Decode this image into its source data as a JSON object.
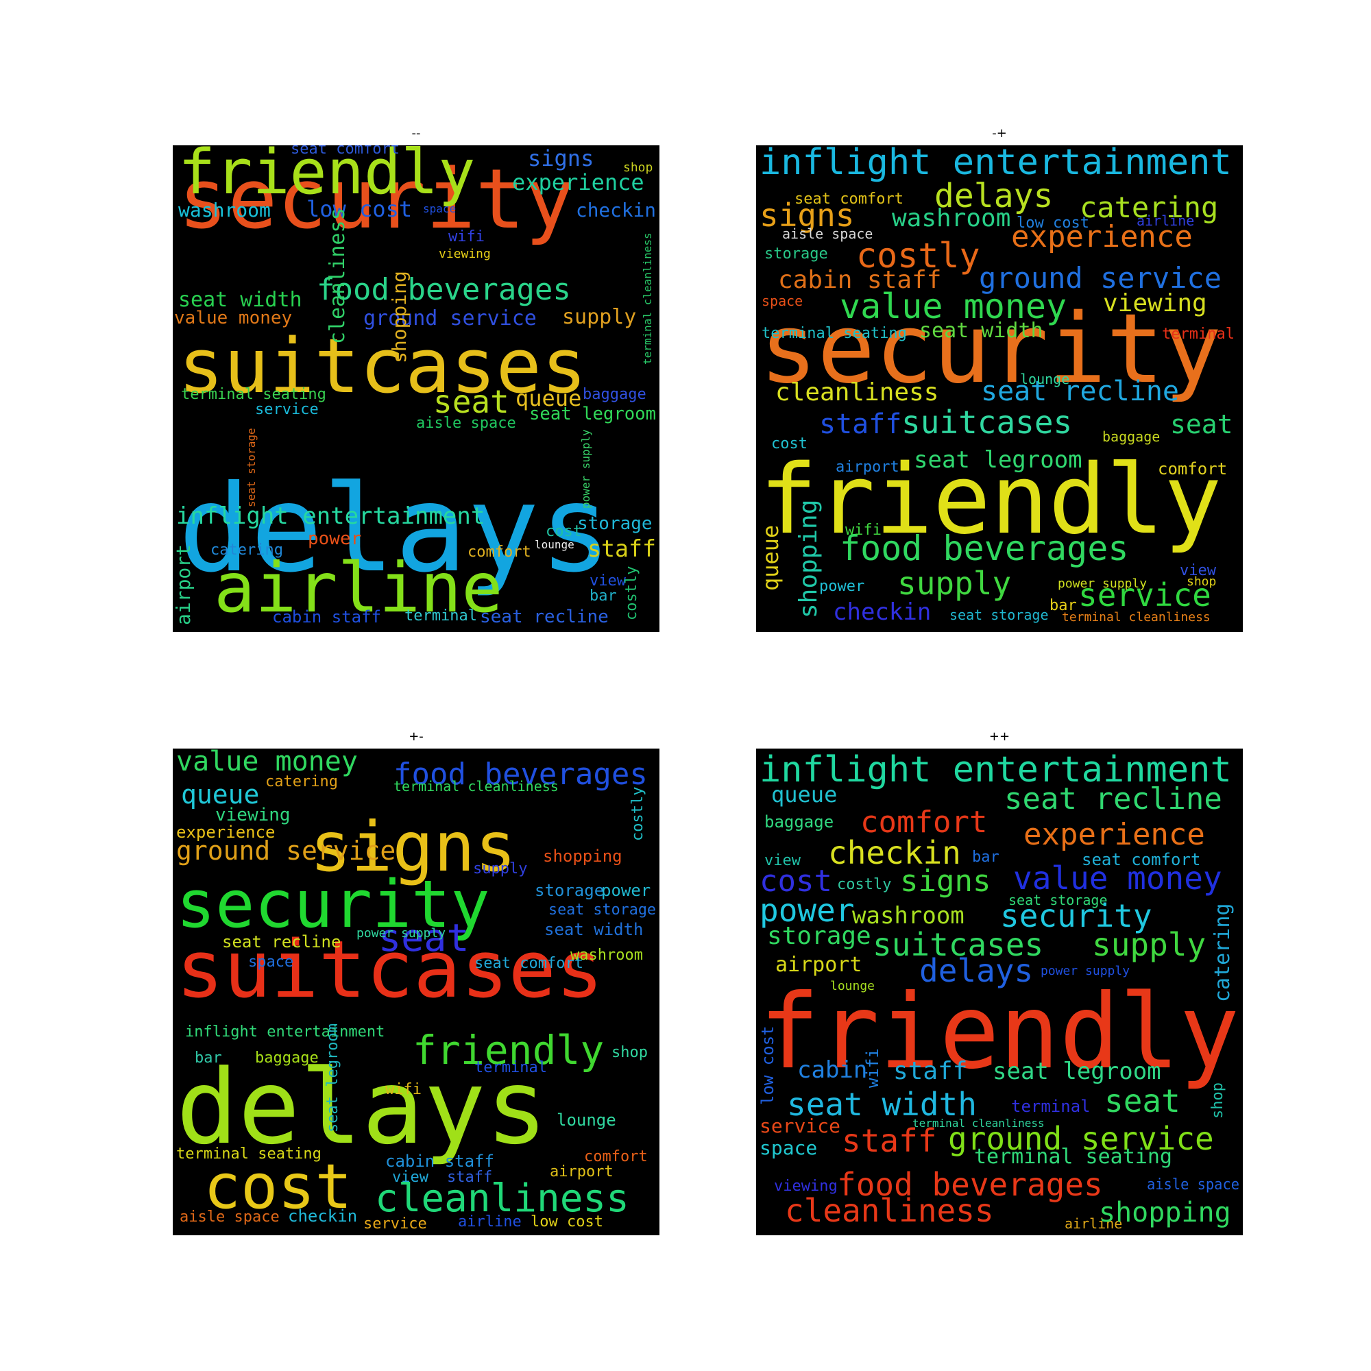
{
  "panels": [
    {
      "id": "mm",
      "title": "--",
      "words": [
        {
          "text": "delays",
          "color": "#12a5e0"
        },
        {
          "text": "security",
          "color": "#e8501c"
        },
        {
          "text": "suitcases",
          "color": "#e6bf1a"
        },
        {
          "text": "airline",
          "color": "#84e019"
        },
        {
          "text": "friendly",
          "color": "#a8e01a"
        },
        {
          "text": "food beverages",
          "color": "#2ad48a"
        },
        {
          "text": "inflight entertainment",
          "color": "#26d8a0"
        },
        {
          "text": "experience",
          "color": "#1fd0a0"
        },
        {
          "text": "low cost",
          "color": "#2060e0"
        },
        {
          "text": "washroom",
          "color": "#18c0d8"
        },
        {
          "text": "ground service",
          "color": "#3050e0"
        },
        {
          "text": "seat width",
          "color": "#28d050"
        },
        {
          "text": "value money",
          "color": "#e07818"
        },
        {
          "text": "seat",
          "color": "#b8e020"
        },
        {
          "text": "queue",
          "color": "#e8c020"
        },
        {
          "text": "supply",
          "color": "#e0a020"
        },
        {
          "text": "signs",
          "color": "#3070e8"
        },
        {
          "text": "checkin",
          "color": "#2070e0"
        },
        {
          "text": "cleanliness",
          "color": "#30d068"
        },
        {
          "text": "shopping",
          "color": "#e0b020"
        },
        {
          "text": "staff",
          "color": "#d8d018"
        },
        {
          "text": "storage",
          "color": "#20b8d8"
        },
        {
          "text": "terminal seating",
          "color": "#38d050"
        },
        {
          "text": "seat legroom",
          "color": "#30d858"
        },
        {
          "text": "seat comfort",
          "color": "#2c58d8"
        },
        {
          "text": "service",
          "color": "#1ab8d8"
        },
        {
          "text": "aisle space",
          "color": "#20c860"
        },
        {
          "text": "baggage",
          "color": "#3050e0"
        },
        {
          "text": "power",
          "color": "#e85018"
        },
        {
          "text": "catering",
          "color": "#2088d8"
        },
        {
          "text": "comfort",
          "color": "#e0b020"
        },
        {
          "text": "cost",
          "color": "#20c0a0"
        },
        {
          "text": "airport",
          "color": "#28d088"
        },
        {
          "text": "view",
          "color": "#2050e0"
        },
        {
          "text": "bar",
          "color": "#20b0c8"
        },
        {
          "text": "costly",
          "color": "#20c070"
        },
        {
          "text": "cabin staff",
          "color": "#2050e0"
        },
        {
          "text": "terminal",
          "color": "#30c8d0"
        },
        {
          "text": "seat recline",
          "color": "#2a60e0"
        },
        {
          "text": "wifi",
          "color": "#3040e0"
        },
        {
          "text": "viewing",
          "color": "#e8d018"
        },
        {
          "text": "space",
          "color": "#2050e0"
        },
        {
          "text": "shop",
          "color": "#c8d020"
        },
        {
          "text": "lounge",
          "color": "#f0f0f0"
        },
        {
          "text": "power supply",
          "color": "#38d068"
        },
        {
          "text": "seat storage",
          "color": "#e06818"
        },
        {
          "text": "terminal cleanliness",
          "color": "#28c868"
        }
      ]
    },
    {
      "id": "mp",
      "title": "-+",
      "words": [
        {
          "text": "security",
          "color": "#e8701c"
        },
        {
          "text": "friendly",
          "color": "#e0e018"
        },
        {
          "text": "inflight entertainment",
          "color": "#1ab8e0"
        },
        {
          "text": "delays",
          "color": "#b8e020"
        },
        {
          "text": "catering",
          "color": "#a8e020"
        },
        {
          "text": "signs",
          "color": "#e8a018"
        },
        {
          "text": "washroom",
          "color": "#28d088"
        },
        {
          "text": "experience",
          "color": "#e87018"
        },
        {
          "text": "costly",
          "color": "#e86818"
        },
        {
          "text": "cabin staff",
          "color": "#e07018"
        },
        {
          "text": "ground service",
          "color": "#2070e0"
        },
        {
          "text": "value money",
          "color": "#30d850"
        },
        {
          "text": "viewing",
          "color": "#d8e020"
        },
        {
          "text": "seat width",
          "color": "#60d840"
        },
        {
          "text": "cleanliness",
          "color": "#d8e020"
        },
        {
          "text": "seat recline",
          "color": "#20a8e0"
        },
        {
          "text": "suitcases",
          "color": "#30d8a0"
        },
        {
          "text": "staff",
          "color": "#2050e0"
        },
        {
          "text": "seat",
          "color": "#28d070"
        },
        {
          "text": "seat legroom",
          "color": "#30d870"
        },
        {
          "text": "food beverages",
          "color": "#30d860"
        },
        {
          "text": "supply",
          "color": "#40d840"
        },
        {
          "text": "service",
          "color": "#30d840"
        },
        {
          "text": "shopping",
          "color": "#20c8a8"
        },
        {
          "text": "queue",
          "color": "#e0d018"
        },
        {
          "text": "checkin",
          "color": "#3030e0"
        },
        {
          "text": "seat comfort",
          "color": "#e0c018"
        },
        {
          "text": "low cost",
          "color": "#2080e0"
        },
        {
          "text": "airline",
          "color": "#3040e0"
        },
        {
          "text": "aisle space",
          "color": "#d8d8d8"
        },
        {
          "text": "storage",
          "color": "#28c888"
        },
        {
          "text": "space",
          "color": "#e85018"
        },
        {
          "text": "terminal seating",
          "color": "#20c0c8"
        },
        {
          "text": "terminal",
          "color": "#e83018"
        },
        {
          "text": "lounge",
          "color": "#30d8a0"
        },
        {
          "text": "cost",
          "color": "#20c0d0"
        },
        {
          "text": "airport",
          "color": "#2080e0"
        },
        {
          "text": "baggage",
          "color": "#c8d820"
        },
        {
          "text": "comfort",
          "color": "#e0d020"
        },
        {
          "text": "wifi",
          "color": "#40d840"
        },
        {
          "text": "power",
          "color": "#20c0d8"
        },
        {
          "text": "view",
          "color": "#3050e0"
        },
        {
          "text": "power supply",
          "color": "#d0e020"
        },
        {
          "text": "shop",
          "color": "#e0d018"
        },
        {
          "text": "bar",
          "color": "#e8d018"
        },
        {
          "text": "seat storage",
          "color": "#20b8d0"
        },
        {
          "text": "terminal cleanliness",
          "color": "#e88018"
        }
      ]
    },
    {
      "id": "pm",
      "title": "+-",
      "words": [
        {
          "text": "delays",
          "color": "#a0e018"
        },
        {
          "text": "suitcases",
          "color": "#e83018"
        },
        {
          "text": "security",
          "color": "#20d830"
        },
        {
          "text": "signs",
          "color": "#e8c018"
        },
        {
          "text": "cost",
          "color": "#e8c818"
        },
        {
          "text": "cleanliness",
          "color": "#20d878"
        },
        {
          "text": "friendly",
          "color": "#40d830"
        },
        {
          "text": "food beverages",
          "color": "#2050e0"
        },
        {
          "text": "value money",
          "color": "#30d860"
        },
        {
          "text": "seat",
          "color": "#3030e0"
        },
        {
          "text": "ground service",
          "color": "#e0a018"
        },
        {
          "text": "queue",
          "color": "#20c8d8"
        },
        {
          "text": "catering",
          "color": "#e0a018"
        },
        {
          "text": "viewing",
          "color": "#30d880"
        },
        {
          "text": "experience",
          "color": "#e8c018"
        },
        {
          "text": "terminal cleanliness",
          "color": "#30d860"
        },
        {
          "text": "costly",
          "color": "#20c0c8"
        },
        {
          "text": "supply",
          "color": "#3040e0"
        },
        {
          "text": "shopping",
          "color": "#e85018"
        },
        {
          "text": "storage",
          "color": "#2090d8"
        },
        {
          "text": "power",
          "color": "#20b8d0"
        },
        {
          "text": "seat storage",
          "color": "#2070e0"
        },
        {
          "text": "seat width",
          "color": "#2070d8"
        },
        {
          "text": "seat recline",
          "color": "#d0e020"
        },
        {
          "text": "power supply",
          "color": "#30d8a0"
        },
        {
          "text": "space",
          "color": "#2070e0"
        },
        {
          "text": "seat comfort",
          "color": "#20a8d8"
        },
        {
          "text": "washroom",
          "color": "#a8e020"
        },
        {
          "text": "inflight entertainment",
          "color": "#30d878"
        },
        {
          "text": "bar",
          "color": "#30c8a8"
        },
        {
          "text": "baggage",
          "color": "#a8e018"
        },
        {
          "text": "shop",
          "color": "#30d8a0"
        },
        {
          "text": "terminal",
          "color": "#2050e0"
        },
        {
          "text": "seat legroom",
          "color": "#20b8c0"
        },
        {
          "text": "wifi",
          "color": "#e0b818"
        },
        {
          "text": "lounge",
          "color": "#30d8a0"
        },
        {
          "text": "terminal seating",
          "color": "#d8d818"
        },
        {
          "text": "cabin staff",
          "color": "#2090d8"
        },
        {
          "text": "view",
          "color": "#20a8d8"
        },
        {
          "text": "staff",
          "color": "#3060e0"
        },
        {
          "text": "comfort",
          "color": "#e86018"
        },
        {
          "text": "airport",
          "color": "#e0c018"
        },
        {
          "text": "aisle space",
          "color": "#e06818"
        },
        {
          "text": "checkin",
          "color": "#20b8d8"
        },
        {
          "text": "service",
          "color": "#e8a818"
        },
        {
          "text": "airline",
          "color": "#2050e0"
        },
        {
          "text": "low cost",
          "color": "#e0d018"
        }
      ]
    },
    {
      "id": "pp",
      "title": "++",
      "words": [
        {
          "text": "friendly",
          "color": "#e83818"
        },
        {
          "text": "inflight entertainment",
          "color": "#20d8a0"
        },
        {
          "text": "queue",
          "color": "#20c0d0"
        },
        {
          "text": "seat recline",
          "color": "#30d870"
        },
        {
          "text": "comfort",
          "color": "#e83818"
        },
        {
          "text": "baggage",
          "color": "#30d880"
        },
        {
          "text": "experience",
          "color": "#e87018"
        },
        {
          "text": "view",
          "color": "#20c0a8"
        },
        {
          "text": "checkin",
          "color": "#d8e020"
        },
        {
          "text": "bar",
          "color": "#2070e0"
        },
        {
          "text": "seat comfort",
          "color": "#20b0d8"
        },
        {
          "text": "cost",
          "color": "#3030e0"
        },
        {
          "text": "costly",
          "color": "#30c8a0"
        },
        {
          "text": "signs",
          "color": "#40d840"
        },
        {
          "text": "value money",
          "color": "#2030e0"
        },
        {
          "text": "seat storage",
          "color": "#30d878"
        },
        {
          "text": "power",
          "color": "#20c8e0"
        },
        {
          "text": "catering",
          "color": "#20a8d8"
        },
        {
          "text": "washroom",
          "color": "#a8e020"
        },
        {
          "text": "security",
          "color": "#20c8e0"
        },
        {
          "text": "storage",
          "color": "#30d860"
        },
        {
          "text": "suitcases",
          "color": "#30d860"
        },
        {
          "text": "supply",
          "color": "#40d840"
        },
        {
          "text": "airport",
          "color": "#d8d818"
        },
        {
          "text": "delays",
          "color": "#2060e0"
        },
        {
          "text": "power supply",
          "color": "#2050e0"
        },
        {
          "text": "lounge",
          "color": "#a8e020"
        },
        {
          "text": "low cost",
          "color": "#2060e0"
        },
        {
          "text": "cabin",
          "color": "#2080e0"
        },
        {
          "text": "wifi",
          "color": "#2080e0"
        },
        {
          "text": "staff",
          "color": "#20a8d8"
        },
        {
          "text": "seat legroom",
          "color": "#30d888"
        },
        {
          "text": "seat width",
          "color": "#20b8e0"
        },
        {
          "text": "terminal",
          "color": "#3030e0"
        },
        {
          "text": "seat",
          "color": "#30d860"
        },
        {
          "text": "shop",
          "color": "#20c0a8"
        },
        {
          "text": "service",
          "color": "#e84818"
        },
        {
          "text": "terminal cleanliness",
          "color": "#30d8a0"
        },
        {
          "text": "staff",
          "color": "#e83818"
        },
        {
          "text": "ground service",
          "color": "#80e018"
        },
        {
          "text": "space",
          "color": "#20c8d0"
        },
        {
          "text": "terminal seating",
          "color": "#30d878"
        },
        {
          "text": "viewing",
          "color": "#3030e0"
        },
        {
          "text": "food beverages",
          "color": "#e83818"
        },
        {
          "text": "aisle space",
          "color": "#2060e0"
        },
        {
          "text": "cleanliness",
          "color": "#e83818"
        },
        {
          "text": "airline",
          "color": "#e0a818"
        },
        {
          "text": "shopping",
          "color": "#30d860"
        }
      ]
    }
  ]
}
